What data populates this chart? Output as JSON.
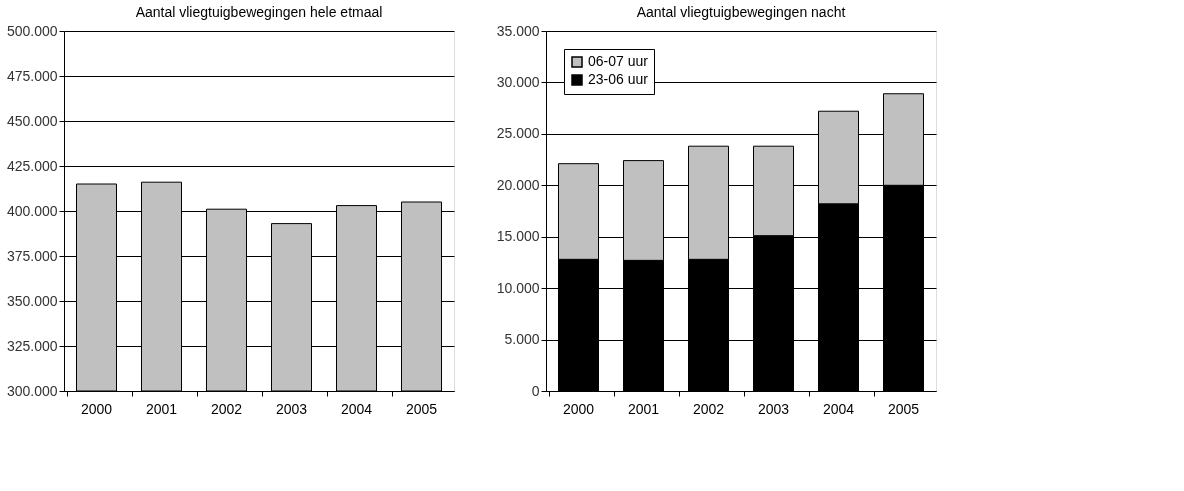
{
  "chart_data": [
    {
      "type": "bar",
      "title": "Aantal vliegtuigbewegingen hele etmaal",
      "categories": [
        "2000",
        "2001",
        "2002",
        "2003",
        "2004",
        "2005"
      ],
      "values": [
        415000,
        416000,
        401000,
        393000,
        403000,
        405000
      ],
      "color": "#c0c0c0",
      "ylim": [
        300000,
        500000
      ],
      "yticks": [
        {
          "value": 300000,
          "label": "300.000"
        },
        {
          "value": 325000,
          "label": "325.000"
        },
        {
          "value": 350000,
          "label": "350.000"
        },
        {
          "value": 375000,
          "label": "375.000"
        },
        {
          "value": 400000,
          "label": "400.000"
        },
        {
          "value": 425000,
          "label": "425.000"
        },
        {
          "value": 450000,
          "label": "450.000"
        },
        {
          "value": 475000,
          "label": "475.000"
        },
        {
          "value": 500000,
          "label": "500.000"
        }
      ],
      "grid": "y"
    },
    {
      "type": "bar",
      "title": "Aantal vliegtuigbewegingen nacht",
      "categories": [
        "2000",
        "2001",
        "2002",
        "2003",
        "2004",
        "2005"
      ],
      "stacked": true,
      "series": [
        {
          "name": "23-06 uur",
          "color": "#000000",
          "values": [
            12800,
            12700,
            12800,
            15100,
            18200,
            20000
          ]
        },
        {
          "name": "06-07 uur",
          "color": "#c0c0c0",
          "values": [
            9300,
            9700,
            11000,
            8700,
            9000,
            8900
          ]
        }
      ],
      "ylim": [
        0,
        35000
      ],
      "yticks": [
        0,
        {
          "value": 5000,
          "label": "5.000"
        },
        {
          "value": 10000,
          "label": "10.000"
        },
        {
          "value": 15000,
          "label": "15.000"
        },
        {
          "value": 20000,
          "label": "20.000"
        },
        {
          "value": 25000,
          "label": "25.000"
        },
        {
          "value": 30000,
          "label": "30.000"
        },
        {
          "value": 35000,
          "label": "35.000"
        }
      ],
      "grid": "y",
      "legend": "top left"
    }
  ]
}
